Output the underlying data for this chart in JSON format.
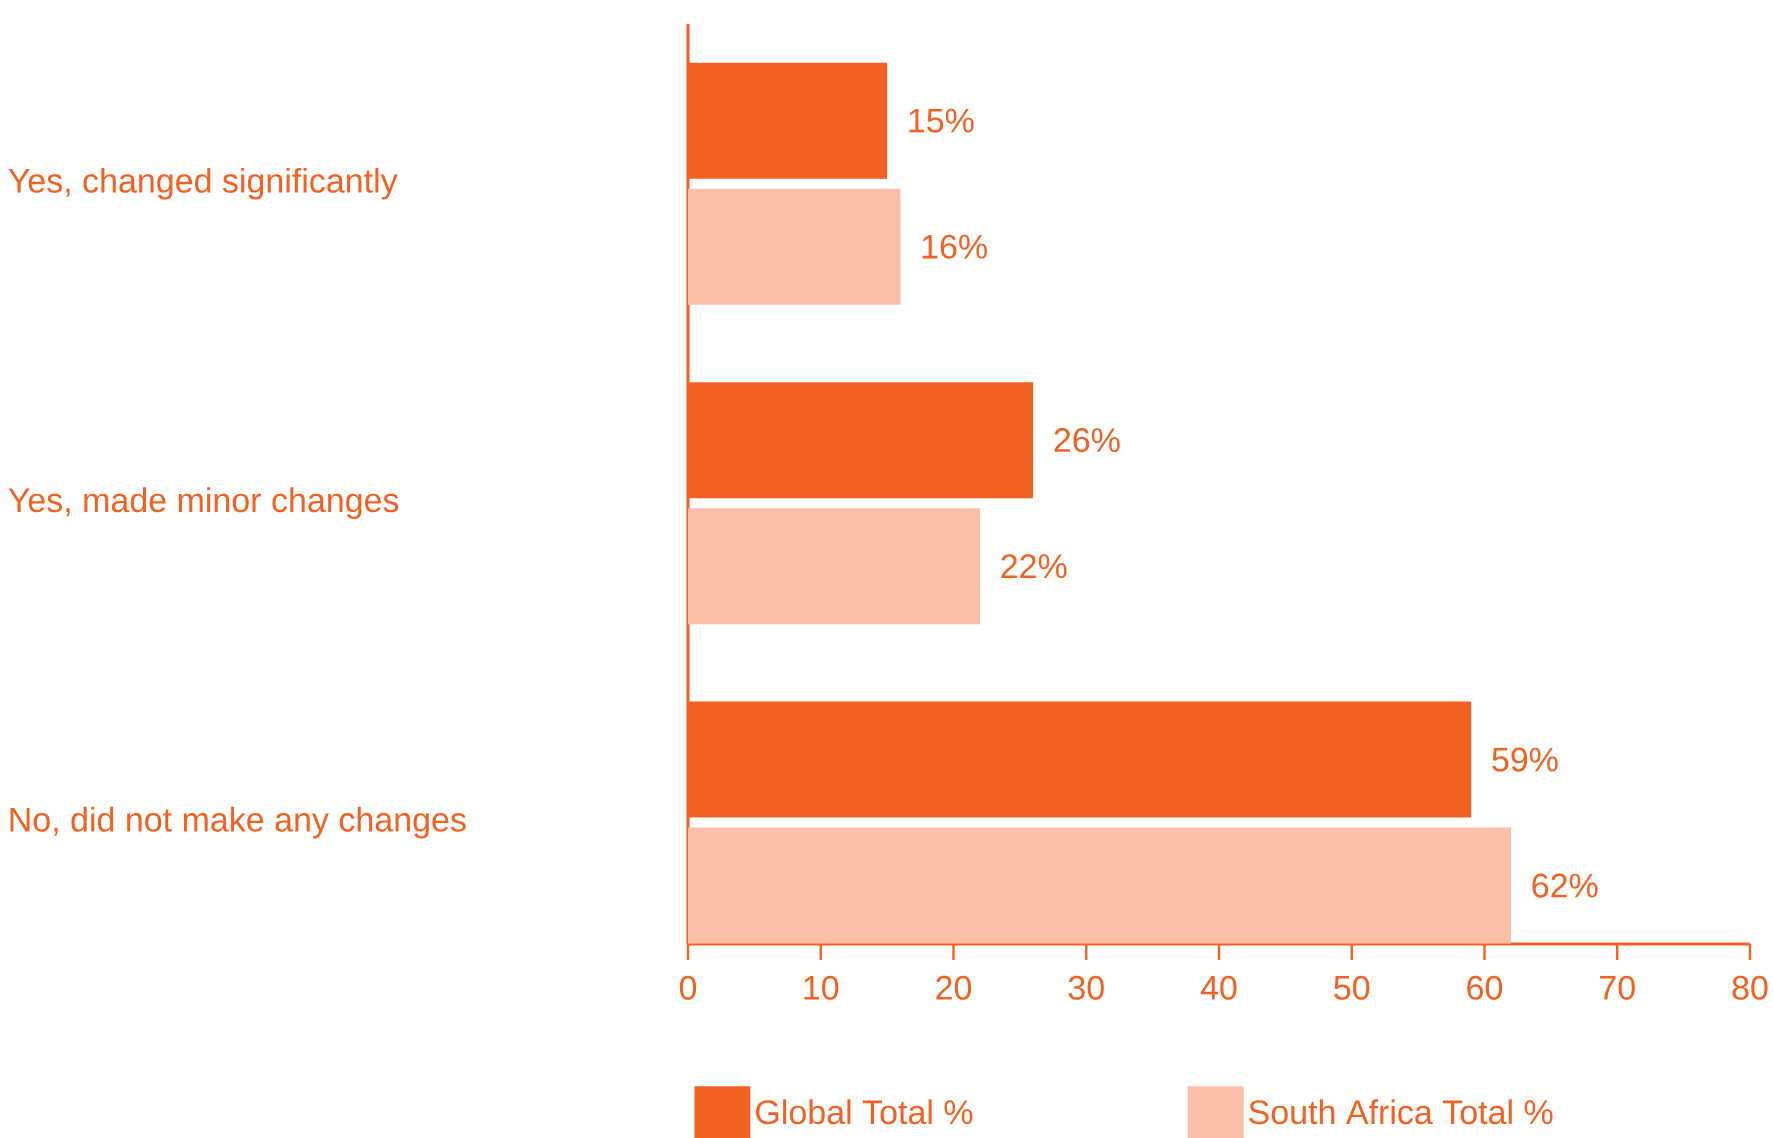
{
  "chart_data": {
    "type": "bar",
    "orientation": "horizontal",
    "categories": [
      "Yes, changed significantly",
      "Yes, made minor changes",
      "No, did not make any changes"
    ],
    "series": [
      {
        "name": "Global Total %",
        "color": "#f26122",
        "values": [
          15,
          26,
          59
        ],
        "value_labels": [
          "15%",
          "26%",
          "59%"
        ]
      },
      {
        "name": "South Africa Total %",
        "color": "#f9bfa8",
        "values": [
          16,
          22,
          62
        ],
        "value_labels": [
          "16%",
          "22%",
          "62%"
        ]
      }
    ],
    "xlim": [
      0,
      80
    ],
    "xticks": [
      0,
      10,
      20,
      30,
      40,
      50,
      60,
      70,
      80
    ],
    "grid": false,
    "legend": "bottom"
  }
}
